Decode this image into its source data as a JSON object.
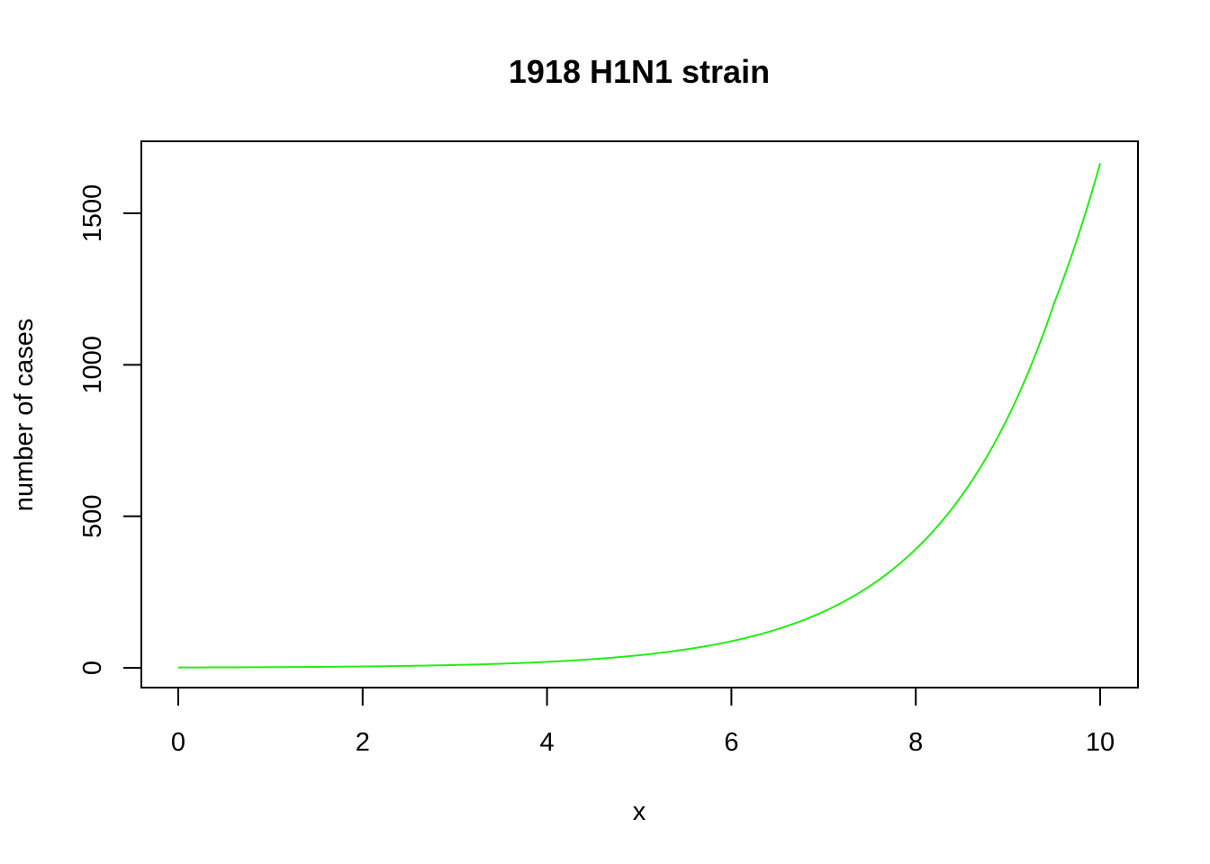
{
  "chart_data": {
    "type": "line",
    "title": "1918 H1N1 strain",
    "xlabel": "x",
    "ylabel": "number of cases",
    "xlim": [
      0,
      10
    ],
    "ylim": [
      0,
      1670
    ],
    "x_ticks": [
      0,
      2,
      4,
      6,
      8,
      10
    ],
    "y_ticks": [
      0,
      500,
      1000,
      1500
    ],
    "grid": false,
    "series": [
      {
        "color": "#22ee11",
        "x": [
          0,
          0.5,
          1,
          1.5,
          2,
          2.5,
          3,
          3.5,
          4,
          4.5,
          5,
          5.5,
          6,
          6.5,
          7,
          7.5,
          8,
          8.5,
          9,
          9.5,
          10
        ],
        "values": [
          1,
          1.5,
          2.1,
          3.0,
          4.4,
          6.4,
          9.3,
          13.5,
          19.6,
          28.6,
          41.5,
          60.4,
          87.7,
          127.5,
          185.3,
          269.4,
          391.6,
          569.1,
          827.2,
          1202.4,
          1665
        ]
      }
    ]
  }
}
